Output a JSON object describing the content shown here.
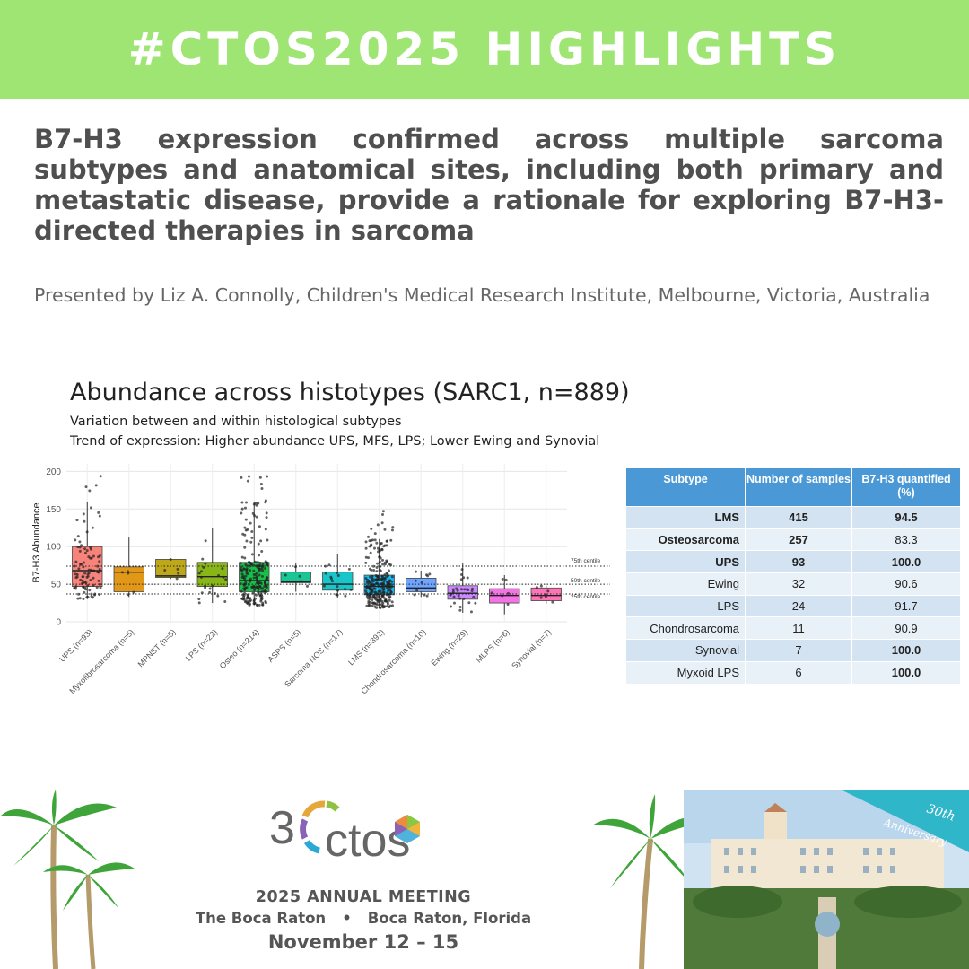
{
  "banner": {
    "text": "#CTOS2025 HIGHLIGHTS",
    "color": "#9ee574"
  },
  "headline": "B7-H3 expression confirmed across multiple sarcoma subtypes and anatomical sites, including both primary and metastatic disease, provide a rationale for exploring B7-H3-directed therapies in sarcoma",
  "presenter": "Presented by Liz A. Connolly, Children's Medical Research Institute, Melbourne, Victoria, Australia",
  "slide": {
    "title": "Abundance across histotypes (SARC1, n=889)",
    "subtitle1": "Variation between and within histological subtypes",
    "subtitle2": "Trend of expression: Higher abundance UPS, MFS, LPS; Lower Ewing and Synovial"
  },
  "chart_data": [
    {
      "type": "box",
      "ylabel": "B7-H3 Abundance",
      "ylim": [
        0,
        210
      ],
      "yticks": [
        0,
        50,
        100,
        150,
        200
      ],
      "grid": true,
      "reference_lines": [
        {
          "label": "75th centile",
          "value": 74
        },
        {
          "label": "50th centile",
          "value": 50
        },
        {
          "label": "25th centile",
          "value": 37
        }
      ],
      "categories": [
        "UPS (n=93)",
        "Myxofibrosarcoma (n=5)",
        "MPNST (n=5)",
        "LPS (n=22)",
        "Osteo (n=214)",
        "ASPS (n=5)",
        "Sarcoma NOS (n=17)",
        "LMS (n=392)",
        "Chondrosarcoma (n=10)",
        "Ewing (n=29)",
        "MLPS (n=6)",
        "Synovial (n=7)"
      ],
      "boxes": [
        {
          "q1": 47,
          "median": 68,
          "q3": 100,
          "whisker_low": 30,
          "whisker_high": 160,
          "color": "#f8766d",
          "n": 93
        },
        {
          "q1": 40,
          "median": 66,
          "q3": 73,
          "whisker_low": 33,
          "whisker_high": 112,
          "color": "#de8c00",
          "n": 5
        },
        {
          "q1": 59,
          "median": 61,
          "q3": 83,
          "whisker_low": 57,
          "whisker_high": 83,
          "color": "#b79f00",
          "n": 5
        },
        {
          "q1": 47,
          "median": 60,
          "q3": 79,
          "whisker_low": 25,
          "whisker_high": 125,
          "color": "#7cae00",
          "n": 22
        },
        {
          "q1": 40,
          "median": 55,
          "q3": 79,
          "whisker_low": 22,
          "whisker_high": 160,
          "color": "#00ba38",
          "n": 214
        },
        {
          "q1": 52,
          "median": 53,
          "q3": 66,
          "whisker_low": 40,
          "whisker_high": 78,
          "color": "#00c08b",
          "n": 5
        },
        {
          "q1": 42,
          "median": 50,
          "q3": 66,
          "whisker_low": 32,
          "whisker_high": 90,
          "color": "#00bfc4",
          "n": 17
        },
        {
          "q1": 36,
          "median": 47,
          "q3": 62,
          "whisker_low": 18,
          "whisker_high": 110,
          "color": "#00b4f0",
          "n": 392
        },
        {
          "q1": 40,
          "median": 45,
          "q3": 58,
          "whisker_low": 33,
          "whisker_high": 68,
          "color": "#619cff",
          "n": 10
        },
        {
          "q1": 30,
          "median": 38,
          "q3": 48,
          "whisker_low": 12,
          "whisker_high": 78,
          "color": "#c77cff",
          "n": 29
        },
        {
          "q1": 25,
          "median": 35,
          "q3": 44,
          "whisker_low": 10,
          "whisker_high": 62,
          "color": "#f564e3",
          "n": 6
        },
        {
          "q1": 28,
          "median": 35,
          "q3": 45,
          "whisker_low": 24,
          "whisker_high": 48,
          "color": "#ff64b0",
          "n": 7
        }
      ]
    },
    {
      "type": "table",
      "columns": [
        "Subtype",
        "Number of samples",
        "B7-H3 quantified (%)"
      ],
      "rows": [
        {
          "subtype": "LMS",
          "samples": "415",
          "pct": "94.5",
          "bold_name": true,
          "bold_n": true,
          "bold_pct": true
        },
        {
          "subtype": "Osteosarcoma",
          "samples": "257",
          "pct": "83.3",
          "bold_name": true,
          "bold_n": true,
          "bold_pct": false
        },
        {
          "subtype": "UPS",
          "samples": "93",
          "pct": "100.0",
          "bold_name": true,
          "bold_n": true,
          "bold_pct": true
        },
        {
          "subtype": "Ewing",
          "samples": "32",
          "pct": "90.6",
          "bold_name": false,
          "bold_n": false,
          "bold_pct": false
        },
        {
          "subtype": "LPS",
          "samples": "24",
          "pct": "91.7",
          "bold_name": false,
          "bold_n": false,
          "bold_pct": false
        },
        {
          "subtype": "Chondrosarcoma",
          "samples": "11",
          "pct": "90.9",
          "bold_name": false,
          "bold_n": false,
          "bold_pct": false
        },
        {
          "subtype": "Synovial",
          "samples": "7",
          "pct": "100.0",
          "bold_name": false,
          "bold_n": false,
          "bold_pct": true
        },
        {
          "subtype": "Myxoid LPS",
          "samples": "6",
          "pct": "100.0",
          "bold_name": false,
          "bold_n": false,
          "bold_pct": true
        }
      ]
    }
  ],
  "footer": {
    "logo_number": "3",
    "logo_text": "ctos",
    "meeting_line": "2025 ANNUAL MEETING",
    "venue": "The Boca Raton",
    "bullet": "•",
    "location": "Boca Raton, Florida",
    "dates": "November 12 – 15",
    "anniversary_1": "30th",
    "anniversary_2": "Anniversary"
  }
}
